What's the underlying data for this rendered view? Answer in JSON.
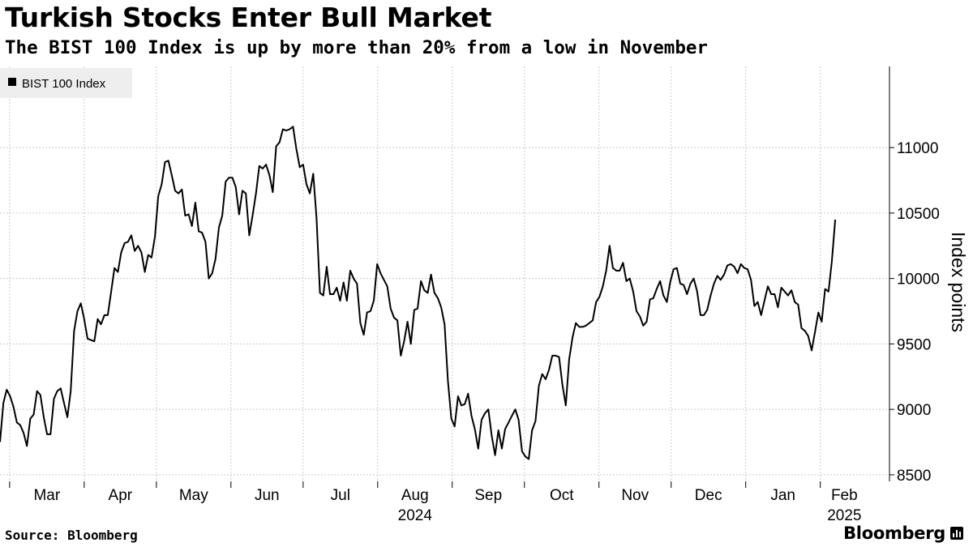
{
  "header": {
    "title": "Turkish Stocks Enter Bull Market",
    "subtitle": "The BIST 100 Index is up by more than 20% from a low in November"
  },
  "footer": {
    "source": "Source: Bloomberg",
    "brand": "Bloomberg"
  },
  "colors": {
    "line": "#000000",
    "grid": "#cccccc",
    "legend_bg": "#eeeeee"
  },
  "chart_data": {
    "type": "line",
    "title": "Turkish Stocks Enter Bull Market",
    "subtitle": "The BIST 100 Index is up by more than 20% from a low in November",
    "xlabel": "",
    "ylabel": "Index points",
    "ylim": [
      8450,
      11620
    ],
    "yticks": [
      8500,
      9000,
      9500,
      10000,
      10500,
      11000
    ],
    "ytick_labels": [
      "8500",
      "9000",
      "9500",
      "10000",
      "10500",
      "11000"
    ],
    "grid": true,
    "legend": "top-left",
    "x_start": "2024-02-26",
    "x_end": "2025-02-21",
    "month_ticks": [
      {
        "label": "Mar",
        "start": "2024-03-01",
        "end": "2024-04-01"
      },
      {
        "label": "Apr",
        "start": "2024-04-01",
        "end": "2024-05-01"
      },
      {
        "label": "May",
        "start": "2024-05-01",
        "end": "2024-06-01"
      },
      {
        "label": "Jun",
        "start": "2024-06-01",
        "end": "2024-07-01"
      },
      {
        "label": "Jul",
        "start": "2024-07-01",
        "end": "2024-08-01"
      },
      {
        "label": "Aug",
        "start": "2024-08-01",
        "end": "2024-09-01"
      },
      {
        "label": "Sep",
        "start": "2024-09-01",
        "end": "2024-10-01"
      },
      {
        "label": "Oct",
        "start": "2024-10-01",
        "end": "2024-11-01"
      },
      {
        "label": "Nov",
        "start": "2024-11-01",
        "end": "2024-12-01"
      },
      {
        "label": "Dec",
        "start": "2024-12-01",
        "end": "2025-01-01"
      },
      {
        "label": "Jan",
        "start": "2025-01-01",
        "end": "2025-02-01"
      },
      {
        "label": "Feb",
        "start": "2025-02-01",
        "end": "2025-02-28"
      }
    ],
    "year_labels": [
      {
        "label": "2024",
        "under": "Aug"
      },
      {
        "label": "2025",
        "under": "Feb"
      }
    ],
    "series": [
      {
        "name": "BIST 100 Index",
        "x_step_days": 1.4,
        "values": [
          8750,
          9050,
          9150,
          9100,
          9020,
          8900,
          8880,
          8820,
          8720,
          8930,
          8960,
          9140,
          9110,
          8940,
          8810,
          8810,
          9080,
          9140,
          9160,
          9050,
          8940,
          9140,
          9600,
          9750,
          9810,
          9690,
          9540,
          9530,
          9520,
          9690,
          9650,
          9720,
          9720,
          9900,
          10080,
          10050,
          10200,
          10270,
          10280,
          10330,
          10210,
          10250,
          10200,
          10050,
          10180,
          10160,
          10320,
          10630,
          10720,
          10890,
          10900,
          10790,
          10670,
          10650,
          10680,
          10480,
          10490,
          10400,
          10580,
          10360,
          10350,
          10280,
          10000,
          10040,
          10150,
          10390,
          10480,
          10740,
          10770,
          10770,
          10700,
          10490,
          10670,
          10650,
          10330,
          10480,
          10650,
          10860,
          10840,
          10870,
          10790,
          10660,
          11010,
          11040,
          11140,
          11130,
          11140,
          11160,
          10990,
          10850,
          10870,
          10720,
          10650,
          10800,
          10460,
          9890,
          9870,
          10090,
          9880,
          9880,
          9930,
          9830,
          9970,
          9830,
          10060,
          10000,
          9960,
          9660,
          9570,
          9740,
          9750,
          9830,
          10110,
          10040,
          9990,
          9940,
          9770,
          9700,
          9680,
          9410,
          9520,
          9670,
          9500,
          9760,
          9770,
          9980,
          9910,
          9890,
          10030,
          9890,
          9850,
          9780,
          9650,
          9220,
          8930,
          8870,
          9100,
          9030,
          9040,
          9120,
          8950,
          8850,
          8700,
          8920,
          8970,
          9000,
          8800,
          8650,
          8840,
          8700,
          8850,
          8900,
          8950,
          9000,
          8920,
          8680,
          8640,
          8620,
          8840,
          8910,
          9180,
          9270,
          9230,
          9300,
          9410,
          9410,
          9400,
          9190,
          9030,
          9380,
          9550,
          9660,
          9630,
          9630,
          9640,
          9660,
          9680,
          9820,
          9860,
          9940,
          10060,
          10250,
          10080,
          10060,
          10060,
          10120,
          9980,
          10000,
          9900,
          9750,
          9710,
          9640,
          9670,
          9840,
          9850,
          9920,
          9980,
          9870,
          9820,
          9970,
          10070,
          10080,
          9960,
          9950,
          9880,
          9960,
          10000,
          9900,
          9720,
          9720,
          9760,
          9870,
          9960,
          10020,
          9990,
          10030,
          10100,
          10110,
          10090,
          10040,
          10110,
          10080,
          10070,
          9990,
          9790,
          9820,
          9720,
          9830,
          9940,
          9880,
          9880,
          9780,
          9930,
          9900,
          9870,
          9910,
          9820,
          9800,
          9620,
          9600,
          9560,
          9450,
          9590,
          9740,
          9670,
          9920,
          9900,
          10130,
          10450
        ]
      }
    ]
  }
}
